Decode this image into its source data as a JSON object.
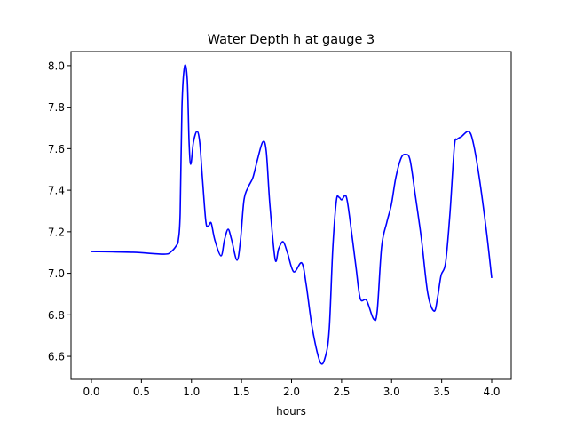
{
  "chart_data": {
    "type": "line",
    "title": "Water Depth h at gauge 3",
    "xlabel": "hours",
    "ylabel": "",
    "xlim": [
      -0.204,
      4.195
    ],
    "ylim": [
      6.489,
      8.068
    ],
    "xticks": [
      0.0,
      0.5,
      1.0,
      1.5,
      2.0,
      2.5,
      3.0,
      3.5,
      4.0
    ],
    "xtick_labels": [
      "0.0",
      "0.5",
      "1.0",
      "1.5",
      "2.0",
      "2.5",
      "3.0",
      "3.5",
      "4.0"
    ],
    "yticks": [
      6.6,
      6.8,
      7.0,
      7.2,
      7.4,
      7.6,
      7.8,
      8.0
    ],
    "ytick_labels": [
      "6.6",
      "6.8",
      "7.0",
      "7.2",
      "7.4",
      "7.6",
      "7.8",
      "8.0"
    ],
    "grid": false,
    "series": [
      {
        "name": "h",
        "color": "#0000ff",
        "x": [
          0,
          0.417,
          0.727,
          0.798,
          0.851,
          0.869,
          0.887,
          0.905,
          0.931,
          0.958,
          0.976,
          0.993,
          1.02,
          1.055,
          1.082,
          1.109,
          1.144,
          1.171,
          1.197,
          1.233,
          1.295,
          1.33,
          1.366,
          1.401,
          1.455,
          1.49,
          1.525,
          1.57,
          1.614,
          1.659,
          1.712,
          1.747,
          1.783,
          1.836,
          1.871,
          1.916,
          1.96,
          2.022,
          2.102,
          2.146,
          2.208,
          2.288,
          2.341,
          2.377,
          2.412,
          2.448,
          2.474,
          2.501,
          2.545,
          2.581,
          2.643,
          2.687,
          2.749,
          2.82,
          2.856,
          2.9,
          2.953,
          2.998,
          3.042,
          3.095,
          3.14,
          3.184,
          3.237,
          3.299,
          3.361,
          3.424,
          3.459,
          3.494,
          3.539,
          3.583,
          3.627,
          3.654,
          3.698,
          3.769,
          3.814,
          3.876,
          3.947,
          4.0
        ],
        "y": [
          7.105,
          7.101,
          7.092,
          7.105,
          7.135,
          7.161,
          7.289,
          7.803,
          7.996,
          7.932,
          7.632,
          7.525,
          7.632,
          7.683,
          7.632,
          7.461,
          7.247,
          7.229,
          7.242,
          7.161,
          7.084,
          7.161,
          7.212,
          7.161,
          7.063,
          7.161,
          7.354,
          7.418,
          7.461,
          7.546,
          7.632,
          7.589,
          7.332,
          7.067,
          7.118,
          7.152,
          7.097,
          7.007,
          7.05,
          6.947,
          6.733,
          6.57,
          6.604,
          6.733,
          7.118,
          7.349,
          7.366,
          7.354,
          7.371,
          7.268,
          7.033,
          6.878,
          6.87,
          6.78,
          6.818,
          7.127,
          7.247,
          7.332,
          7.461,
          7.555,
          7.572,
          7.546,
          7.375,
          7.161,
          6.904,
          6.818,
          6.883,
          6.99,
          7.05,
          7.289,
          7.61,
          7.645,
          7.658,
          7.683,
          7.632,
          7.461,
          7.204,
          6.977
        ]
      }
    ]
  }
}
